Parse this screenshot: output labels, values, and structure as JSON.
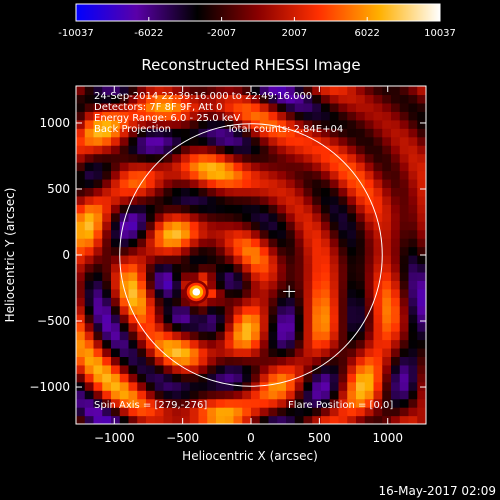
{
  "chart_data": {
    "type": "heatmap",
    "title": "Reconstructed RHESSI Image",
    "xlabel": "Heliocentric X (arcsec)",
    "ylabel": "Heliocentric Y (arcsec)",
    "xlim": [
      -1280,
      1280
    ],
    "ylim": [
      -1280,
      1280
    ],
    "xticks": [
      -1000,
      -500,
      0,
      500,
      1000
    ],
    "yticks": [
      -1000,
      -500,
      0,
      500,
      1000
    ],
    "colorbar": {
      "min": -10037,
      "max": 10037,
      "ticks": [
        "-10037",
        "-6022",
        "-2007",
        "2007",
        "6022",
        "10037"
      ],
      "colors": [
        "#0000ff",
        "#5a00a8",
        "#000000",
        "#8a0000",
        "#ff3000",
        "#ffb000",
        "#ffffff"
      ]
    },
    "annotations": {
      "time_range": "24-Sep-2014 22:39:16.000 to 22:49:16.000",
      "detectors": "Detectors: 7F 8F 9F, Att 0",
      "energy_range": "Energy Range: 6.0 - 25.0 keV",
      "method": "Back Projection",
      "total_counts": "Total counts: 2.84E+04",
      "spin_axis": "Spin Axis = [279,-276]",
      "flare_position": "Flare Position = [0,0]"
    },
    "solar_limb": {
      "center": [
        0,
        0
      ],
      "radius_arcsec": 960
    },
    "spin_axis_marker": [
      279,
      -276
    ],
    "bright_source": {
      "x": -400,
      "y": -280,
      "peak": 10037
    }
  },
  "footer": {
    "date": "16-May-2017 02:09"
  }
}
